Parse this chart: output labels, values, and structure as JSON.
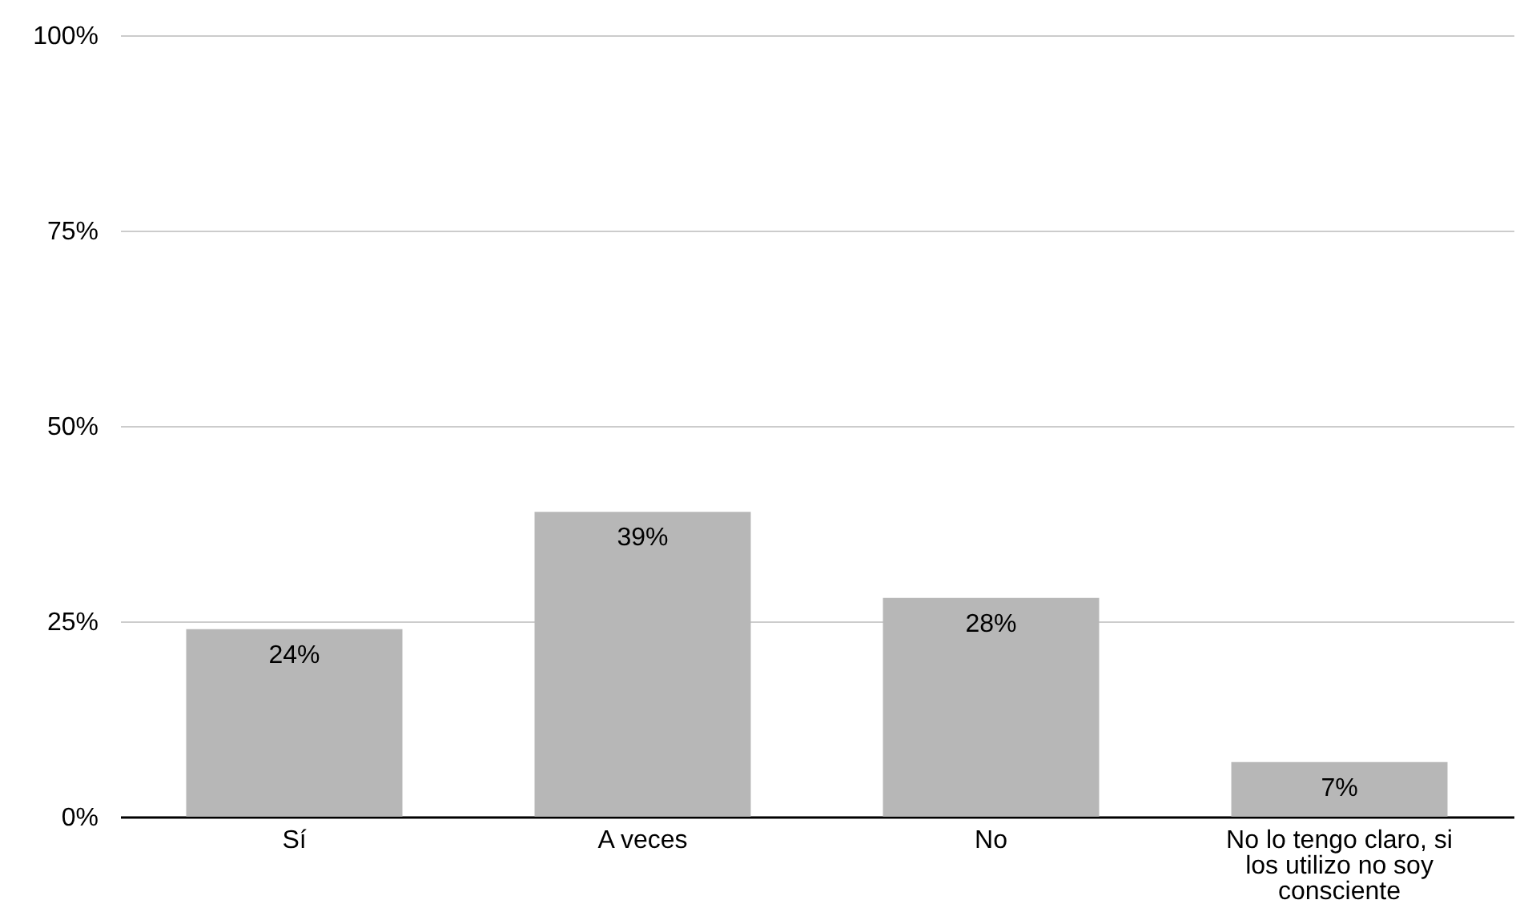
{
  "chart_data": {
    "type": "bar",
    "categories": [
      "Sí",
      "A veces",
      "No",
      "No lo tengo claro, si los utilizo no soy consciente"
    ],
    "values": [
      24,
      39,
      28,
      7
    ],
    "value_labels": [
      "24%",
      "39%",
      "28%",
      "7%"
    ],
    "color": "#b7b7b7",
    "ylim": [
      0,
      100
    ],
    "yticks": [
      {
        "value": 0,
        "label": "0%"
      },
      {
        "value": 25,
        "label": "25%"
      },
      {
        "value": 50,
        "label": "50%"
      },
      {
        "value": 75,
        "label": "75%"
      },
      {
        "value": 100,
        "label": "100%"
      }
    ],
    "grid": "y"
  }
}
